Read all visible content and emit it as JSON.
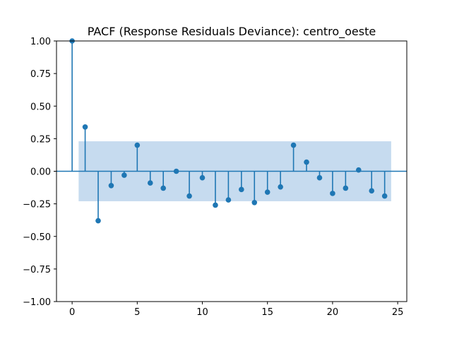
{
  "chart_data": {
    "type": "stem",
    "title": "PACF (Response Residuals Deviance): centro_oeste",
    "xlabel": "",
    "ylabel": "",
    "xlim": [
      -1.2,
      25.7
    ],
    "ylim": [
      -1.0,
      1.0
    ],
    "x_ticks": [
      0,
      5,
      10,
      15,
      20,
      25
    ],
    "y_ticks": [
      -1.0,
      -0.75,
      -0.5,
      -0.25,
      0.0,
      0.25,
      0.5,
      0.75,
      1.0
    ],
    "y_tick_labels": [
      "−1.00",
      "−0.75",
      "−0.50",
      "−0.25",
      "0.00",
      "0.25",
      "0.50",
      "0.75",
      "1.00"
    ],
    "x_tick_labels": [
      "0",
      "5",
      "10",
      "15",
      "20",
      "25"
    ],
    "confidence_band": {
      "x_start": 0.5,
      "x_end": 24.5,
      "lower": -0.23,
      "upper": 0.23
    },
    "colors": {
      "stem": "#1f77b4",
      "band": "#c6dbef",
      "zero_line": "#1f77b4"
    },
    "lags": [
      0,
      1,
      2,
      3,
      4,
      5,
      6,
      7,
      8,
      9,
      10,
      11,
      12,
      13,
      14,
      15,
      16,
      17,
      18,
      19,
      20,
      21,
      22,
      23,
      24
    ],
    "values": [
      1.0,
      0.34,
      -0.38,
      -0.11,
      -0.03,
      0.2,
      -0.09,
      -0.13,
      0.0,
      -0.19,
      -0.05,
      -0.26,
      -0.22,
      -0.14,
      -0.24,
      -0.16,
      -0.12,
      0.2,
      0.07,
      -0.05,
      -0.17,
      -0.13,
      0.01,
      -0.15,
      -0.19
    ]
  }
}
